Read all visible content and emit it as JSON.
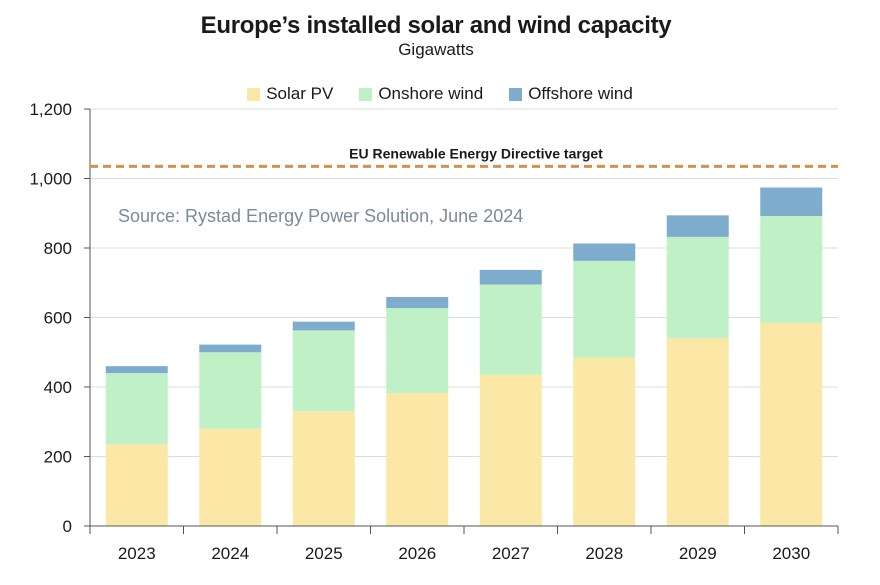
{
  "chart_data": {
    "type": "bar",
    "stacked": true,
    "title": "Europe’s installed solar and wind capacity",
    "subtitle": "Gigawatts",
    "categories": [
      "2023",
      "2024",
      "2025",
      "2026",
      "2027",
      "2028",
      "2029",
      "2030"
    ],
    "series": [
      {
        "name": "Solar PV",
        "color": "#fbe7a6",
        "values": [
          235,
          280,
          330,
          382,
          435,
          485,
          540,
          585
        ]
      },
      {
        "name": "Onshore wind",
        "color": "#c0f0c6",
        "values": [
          205,
          220,
          233,
          245,
          260,
          278,
          292,
          307
        ]
      },
      {
        "name": "Offshore wind",
        "color": "#7eaccc",
        "values": [
          20,
          22,
          25,
          32,
          42,
          50,
          62,
          82
        ]
      }
    ],
    "ylim": [
      0,
      1200
    ],
    "yticks": [
      0,
      200,
      400,
      600,
      800,
      1000,
      1200
    ],
    "ytick_labels": [
      "0",
      "200",
      "400",
      "600",
      "800",
      "1,000",
      "1,200"
    ],
    "grid": true,
    "legend_position": "top",
    "target_line": {
      "value": 1035,
      "label": "EU Renewable Energy Directive target",
      "color": "#d4904a"
    },
    "annotation": "Source: Rystad Energy Power Solution, June 2024"
  }
}
